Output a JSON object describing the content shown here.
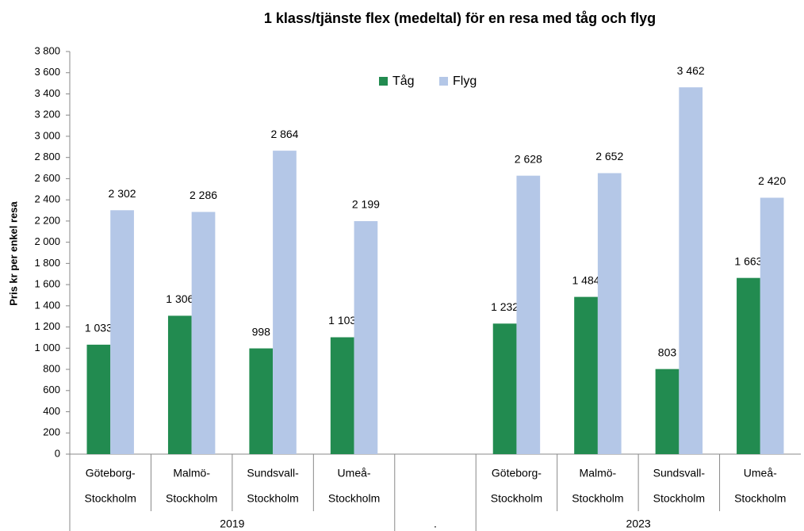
{
  "chart_data": {
    "type": "bar",
    "title": "1 klass/tjänste flex (medeltal)  för en resa med tåg och flyg",
    "ylabel": "Pris kr per enkel resa",
    "categories": [
      [
        "Göteborg-",
        "Stockholm"
      ],
      [
        "Malmö-",
        "Stockholm"
      ],
      [
        "Sundsvall-",
        "Stockholm"
      ],
      [
        "Umeå-",
        "Stockholm"
      ],
      null,
      [
        "Göteborg-",
        "Stockholm"
      ],
      [
        "Malmö-",
        "Stockholm"
      ],
      [
        "Sundsvall-",
        "Stockholm"
      ],
      [
        "Umeå-",
        "Stockholm"
      ]
    ],
    "groups": [
      {
        "name": "2019",
        "span": 4
      },
      {
        "name": ".",
        "span": 1
      },
      {
        "name": "2023",
        "span": 4
      }
    ],
    "series": [
      {
        "name": "Tåg",
        "color": "#228b50",
        "values": [
          1033,
          1306,
          998,
          1103,
          null,
          1232,
          1484,
          803,
          1663
        ],
        "value_labels": [
          "1 033",
          "1 306",
          "998",
          "1 103",
          null,
          "1 232",
          "1 484",
          "803",
          "1 663"
        ]
      },
      {
        "name": "Flyg",
        "color": "#b4c7e7",
        "values": [
          2302,
          2286,
          2864,
          2199,
          null,
          2628,
          2652,
          3462,
          2420
        ],
        "value_labels": [
          "2 302",
          "2 286",
          "2 864",
          "2 199",
          null,
          "2 628",
          "2 652",
          "3 462",
          "2 420"
        ]
      }
    ],
    "ylim": [
      0,
      3800
    ],
    "yticks": [
      0,
      200,
      400,
      600,
      800,
      {
        "value": 1000,
        "label": "1 000"
      },
      {
        "value": 1200,
        "label": "1 200"
      },
      {
        "value": 1400,
        "label": "1 400"
      },
      {
        "value": 1600,
        "label": "1 600"
      },
      {
        "value": 1800,
        "label": "1 800"
      },
      {
        "value": 2000,
        "label": "2 000"
      },
      {
        "value": 2200,
        "label": "2 200"
      },
      {
        "value": 2400,
        "label": "2 400"
      },
      {
        "value": 2600,
        "label": "2 600"
      },
      {
        "value": 2800,
        "label": "2 800"
      },
      {
        "value": 3000,
        "label": "3 000"
      },
      {
        "value": 3200,
        "label": "3 200"
      },
      {
        "value": 3400,
        "label": "3 400"
      },
      {
        "value": 3600,
        "label": "3 600"
      },
      {
        "value": 3800,
        "label": "3 800"
      }
    ],
    "grid": false,
    "legend": "top"
  }
}
